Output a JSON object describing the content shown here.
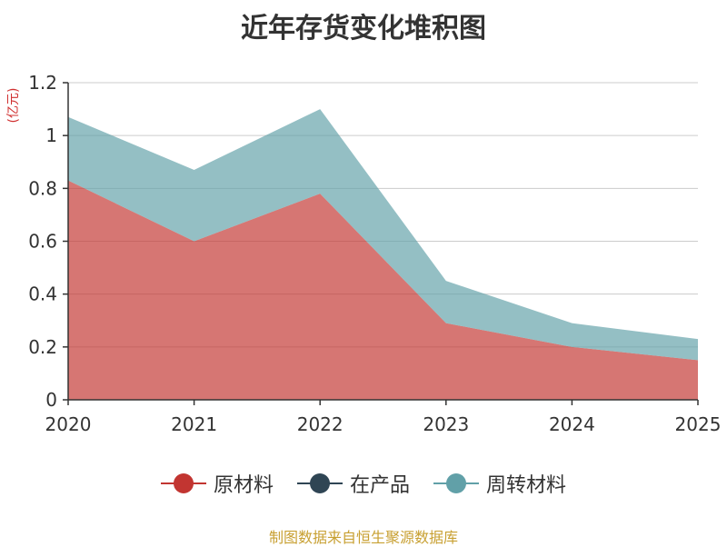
{
  "chart_data": {
    "type": "area",
    "stacked": true,
    "title": "近年存货变化堆积图",
    "unit_label": "(亿元)",
    "x": [
      "2020",
      "2021",
      "2022",
      "2023",
      "2024",
      "2025"
    ],
    "ylim": [
      0,
      1.2
    ],
    "yticks": [
      "0",
      "0.2",
      "0.4",
      "0.6",
      "0.8",
      "1",
      "1.2"
    ],
    "grid": true,
    "legend_position": "bottom",
    "series": [
      {
        "name": "原材料",
        "values": [
          0.83,
          0.6,
          0.78,
          0.29,
          0.2,
          0.15
        ],
        "color": "#c23531"
      },
      {
        "name": "在产品",
        "values": [
          0,
          0,
          0,
          0,
          0,
          0
        ],
        "color": "#2f4554"
      },
      {
        "name": "周转材料",
        "values": [
          0.24,
          0.27,
          0.32,
          0.16,
          0.09,
          0.08
        ],
        "color": "#61a0a8"
      }
    ]
  },
  "source_note": "制图数据来自恒生聚源数据库"
}
